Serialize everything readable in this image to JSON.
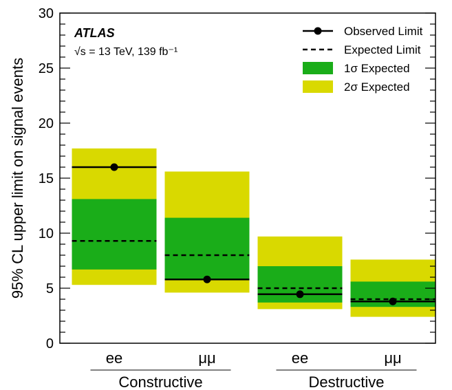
{
  "chart_data": {
    "type": "bar",
    "ylabel": "95% CL upper limit on signal events",
    "ylim": [
      0,
      30
    ],
    "yticks": [
      "0",
      "5",
      "10",
      "15",
      "20",
      "25",
      "30"
    ],
    "experiment": "ATLAS",
    "energy_lumi": "√s = 13 TeV, 139 fb⁻¹",
    "groups": [
      {
        "name": "Constructive",
        "categories": [
          "ee",
          "μμ"
        ]
      },
      {
        "name": "Destructive",
        "categories": [
          "ee",
          "μμ"
        ]
      }
    ],
    "categories": [
      "ee",
      "μμ",
      "ee",
      "μμ"
    ],
    "observed": [
      16.0,
      5.8,
      4.45,
      3.8
    ],
    "expected": [
      9.3,
      8.0,
      5.0,
      4.0
    ],
    "one_sigma": [
      [
        6.7,
        13.1
      ],
      [
        5.8,
        11.4
      ],
      [
        3.7,
        7.0
      ],
      [
        3.3,
        5.6
      ]
    ],
    "two_sigma": [
      [
        5.3,
        17.7
      ],
      [
        4.6,
        15.6
      ],
      [
        3.1,
        9.7
      ],
      [
        2.4,
        7.6
      ]
    ],
    "legend": [
      {
        "label": "Observed Limit",
        "kind": "observed"
      },
      {
        "label": "Expected Limit",
        "kind": "expected"
      },
      {
        "label": "1σ Expected",
        "kind": "one_sigma"
      },
      {
        "label": "2σ Expected",
        "kind": "two_sigma"
      }
    ],
    "colors": {
      "one_sigma": "#1aad19",
      "two_sigma": "#d9d900",
      "line": "#000000"
    }
  }
}
